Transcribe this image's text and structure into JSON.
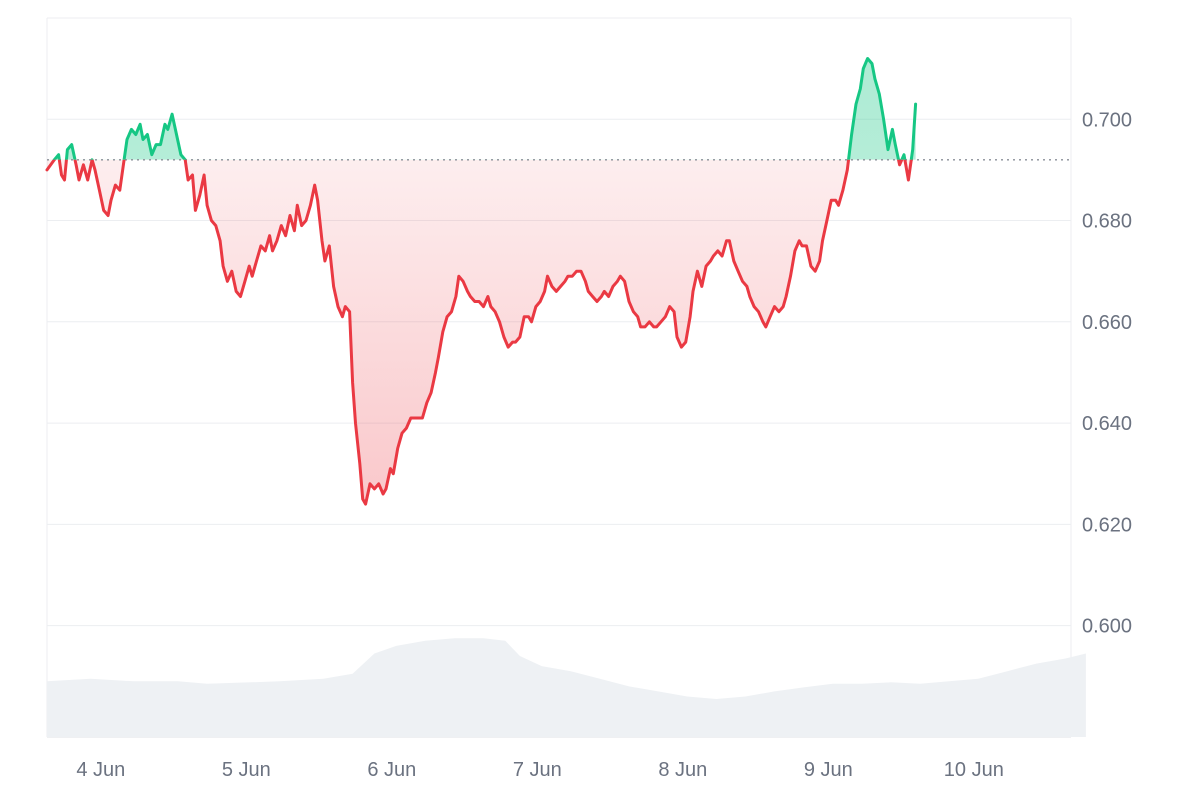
{
  "chart_data": {
    "type": "line",
    "title": "",
    "xlabel": "",
    "ylabel": "",
    "baseline": 0.692,
    "ylim": [
      0.578,
      0.72
    ],
    "y_ticks": [
      {
        "value": 0.6,
        "label": "0.600"
      },
      {
        "value": 0.62,
        "label": "0.620"
      },
      {
        "value": 0.64,
        "label": "0.640"
      },
      {
        "value": 0.66,
        "label": "0.660"
      },
      {
        "value": 0.68,
        "label": "0.680"
      },
      {
        "value": 0.7,
        "label": "0.700"
      }
    ],
    "x_range": [
      0,
      7.14
    ],
    "x_ticks": [
      {
        "value": 0.37,
        "label": "4 Jun"
      },
      {
        "value": 1.37,
        "label": "5 Jun"
      },
      {
        "value": 2.37,
        "label": "6 Jun"
      },
      {
        "value": 3.37,
        "label": "7 Jun"
      },
      {
        "value": 4.37,
        "label": "8 Jun"
      },
      {
        "value": 5.37,
        "label": "9 Jun"
      },
      {
        "value": 6.37,
        "label": "10 Jun"
      }
    ],
    "series": [
      {
        "values": [
          [
            0.0,
            0.69
          ],
          [
            0.05,
            0.692
          ],
          [
            0.08,
            0.693
          ],
          [
            0.1,
            0.689
          ],
          [
            0.12,
            0.688
          ],
          [
            0.14,
            0.694
          ],
          [
            0.17,
            0.695
          ],
          [
            0.2,
            0.691
          ],
          [
            0.22,
            0.688
          ],
          [
            0.25,
            0.691
          ],
          [
            0.28,
            0.688
          ],
          [
            0.31,
            0.692
          ],
          [
            0.33,
            0.69
          ],
          [
            0.36,
            0.686
          ],
          [
            0.39,
            0.682
          ],
          [
            0.42,
            0.681
          ],
          [
            0.44,
            0.684
          ],
          [
            0.47,
            0.687
          ],
          [
            0.5,
            0.686
          ],
          [
            0.53,
            0.692
          ],
          [
            0.55,
            0.696
          ],
          [
            0.58,
            0.698
          ],
          [
            0.61,
            0.697
          ],
          [
            0.64,
            0.699
          ],
          [
            0.66,
            0.696
          ],
          [
            0.69,
            0.697
          ],
          [
            0.72,
            0.693
          ],
          [
            0.75,
            0.695
          ],
          [
            0.78,
            0.695
          ],
          [
            0.81,
            0.699
          ],
          [
            0.83,
            0.698
          ],
          [
            0.86,
            0.701
          ],
          [
            0.89,
            0.697
          ],
          [
            0.92,
            0.693
          ],
          [
            0.95,
            0.692
          ],
          [
            0.97,
            0.688
          ],
          [
            1.0,
            0.689
          ],
          [
            1.02,
            0.682
          ],
          [
            1.05,
            0.685
          ],
          [
            1.08,
            0.689
          ],
          [
            1.1,
            0.683
          ],
          [
            1.13,
            0.68
          ],
          [
            1.16,
            0.679
          ],
          [
            1.19,
            0.676
          ],
          [
            1.21,
            0.671
          ],
          [
            1.24,
            0.668
          ],
          [
            1.27,
            0.67
          ],
          [
            1.3,
            0.666
          ],
          [
            1.33,
            0.665
          ],
          [
            1.36,
            0.668
          ],
          [
            1.39,
            0.671
          ],
          [
            1.41,
            0.669
          ],
          [
            1.44,
            0.672
          ],
          [
            1.47,
            0.675
          ],
          [
            1.5,
            0.674
          ],
          [
            1.53,
            0.677
          ],
          [
            1.55,
            0.674
          ],
          [
            1.58,
            0.676
          ],
          [
            1.61,
            0.679
          ],
          [
            1.64,
            0.677
          ],
          [
            1.67,
            0.681
          ],
          [
            1.7,
            0.678
          ],
          [
            1.72,
            0.683
          ],
          [
            1.75,
            0.679
          ],
          [
            1.78,
            0.68
          ],
          [
            1.81,
            0.683
          ],
          [
            1.84,
            0.687
          ],
          [
            1.86,
            0.684
          ],
          [
            1.89,
            0.676
          ],
          [
            1.91,
            0.672
          ],
          [
            1.94,
            0.675
          ],
          [
            1.97,
            0.667
          ],
          [
            2.0,
            0.663
          ],
          [
            2.03,
            0.661
          ],
          [
            2.05,
            0.663
          ],
          [
            2.08,
            0.662
          ],
          [
            2.1,
            0.648
          ],
          [
            2.12,
            0.64
          ],
          [
            2.15,
            0.632
          ],
          [
            2.17,
            0.625
          ],
          [
            2.19,
            0.624
          ],
          [
            2.22,
            0.628
          ],
          [
            2.25,
            0.627
          ],
          [
            2.28,
            0.628
          ],
          [
            2.31,
            0.626
          ],
          [
            2.33,
            0.627
          ],
          [
            2.36,
            0.631
          ],
          [
            2.38,
            0.63
          ],
          [
            2.41,
            0.635
          ],
          [
            2.44,
            0.638
          ],
          [
            2.47,
            0.639
          ],
          [
            2.5,
            0.641
          ],
          [
            2.53,
            0.641
          ],
          [
            2.56,
            0.641
          ],
          [
            2.58,
            0.641
          ],
          [
            2.61,
            0.644
          ],
          [
            2.64,
            0.646
          ],
          [
            2.67,
            0.65
          ],
          [
            2.69,
            0.653
          ],
          [
            2.72,
            0.658
          ],
          [
            2.75,
            0.661
          ],
          [
            2.78,
            0.662
          ],
          [
            2.81,
            0.665
          ],
          [
            2.83,
            0.669
          ],
          [
            2.86,
            0.668
          ],
          [
            2.89,
            0.666
          ],
          [
            2.91,
            0.665
          ],
          [
            2.94,
            0.664
          ],
          [
            2.97,
            0.664
          ],
          [
            3.0,
            0.663
          ],
          [
            3.03,
            0.665
          ],
          [
            3.05,
            0.663
          ],
          [
            3.08,
            0.662
          ],
          [
            3.11,
            0.66
          ],
          [
            3.14,
            0.657
          ],
          [
            3.17,
            0.655
          ],
          [
            3.2,
            0.656
          ],
          [
            3.22,
            0.656
          ],
          [
            3.25,
            0.657
          ],
          [
            3.28,
            0.661
          ],
          [
            3.31,
            0.661
          ],
          [
            3.33,
            0.66
          ],
          [
            3.36,
            0.663
          ],
          [
            3.39,
            0.664
          ],
          [
            3.42,
            0.666
          ],
          [
            3.44,
            0.669
          ],
          [
            3.47,
            0.667
          ],
          [
            3.5,
            0.666
          ],
          [
            3.53,
            0.667
          ],
          [
            3.56,
            0.668
          ],
          [
            3.58,
            0.669
          ],
          [
            3.61,
            0.669
          ],
          [
            3.64,
            0.67
          ],
          [
            3.67,
            0.67
          ],
          [
            3.7,
            0.668
          ],
          [
            3.72,
            0.666
          ],
          [
            3.75,
            0.665
          ],
          [
            3.78,
            0.664
          ],
          [
            3.81,
            0.665
          ],
          [
            3.83,
            0.666
          ],
          [
            3.86,
            0.665
          ],
          [
            3.89,
            0.667
          ],
          [
            3.92,
            0.668
          ],
          [
            3.94,
            0.669
          ],
          [
            3.97,
            0.668
          ],
          [
            4.0,
            0.664
          ],
          [
            4.03,
            0.662
          ],
          [
            4.06,
            0.661
          ],
          [
            4.08,
            0.659
          ],
          [
            4.11,
            0.659
          ],
          [
            4.14,
            0.66
          ],
          [
            4.17,
            0.659
          ],
          [
            4.19,
            0.659
          ],
          [
            4.22,
            0.66
          ],
          [
            4.25,
            0.661
          ],
          [
            4.28,
            0.663
          ],
          [
            4.31,
            0.662
          ],
          [
            4.33,
            0.657
          ],
          [
            4.36,
            0.655
          ],
          [
            4.39,
            0.656
          ],
          [
            4.42,
            0.661
          ],
          [
            4.44,
            0.666
          ],
          [
            4.47,
            0.67
          ],
          [
            4.5,
            0.667
          ],
          [
            4.53,
            0.671
          ],
          [
            4.56,
            0.672
          ],
          [
            4.58,
            0.673
          ],
          [
            4.61,
            0.674
          ],
          [
            4.64,
            0.673
          ],
          [
            4.67,
            0.676
          ],
          [
            4.69,
            0.676
          ],
          [
            4.72,
            0.672
          ],
          [
            4.75,
            0.67
          ],
          [
            4.78,
            0.668
          ],
          [
            4.81,
            0.667
          ],
          [
            4.83,
            0.665
          ],
          [
            4.86,
            0.663
          ],
          [
            4.89,
            0.662
          ],
          [
            4.92,
            0.66
          ],
          [
            4.94,
            0.659
          ],
          [
            4.97,
            0.661
          ],
          [
            5.0,
            0.663
          ],
          [
            5.03,
            0.662
          ],
          [
            5.06,
            0.663
          ],
          [
            5.08,
            0.665
          ],
          [
            5.11,
            0.669
          ],
          [
            5.14,
            0.674
          ],
          [
            5.17,
            0.676
          ],
          [
            5.19,
            0.675
          ],
          [
            5.22,
            0.675
          ],
          [
            5.25,
            0.671
          ],
          [
            5.28,
            0.67
          ],
          [
            5.31,
            0.672
          ],
          [
            5.33,
            0.676
          ],
          [
            5.36,
            0.68
          ],
          [
            5.39,
            0.684
          ],
          [
            5.42,
            0.684
          ],
          [
            5.44,
            0.683
          ],
          [
            5.47,
            0.686
          ],
          [
            5.5,
            0.69
          ],
          [
            5.53,
            0.697
          ],
          [
            5.56,
            0.703
          ],
          [
            5.59,
            0.706
          ],
          [
            5.61,
            0.71
          ],
          [
            5.64,
            0.712
          ],
          [
            5.67,
            0.711
          ],
          [
            5.69,
            0.708
          ],
          [
            5.72,
            0.705
          ],
          [
            5.75,
            0.7
          ],
          [
            5.78,
            0.694
          ],
          [
            5.81,
            0.698
          ],
          [
            5.83,
            0.695
          ],
          [
            5.86,
            0.691
          ],
          [
            5.89,
            0.693
          ],
          [
            5.92,
            0.688
          ],
          [
            5.95,
            0.694
          ],
          [
            5.97,
            0.703
          ]
        ]
      }
    ],
    "volume": [
      [
        0.0,
        0.589
      ],
      [
        0.3,
        0.5895
      ],
      [
        0.6,
        0.589
      ],
      [
        0.9,
        0.589
      ],
      [
        1.1,
        0.5885
      ],
      [
        1.3,
        0.5887
      ],
      [
        1.6,
        0.589
      ],
      [
        1.9,
        0.5895
      ],
      [
        2.1,
        0.5905
      ],
      [
        2.25,
        0.5945
      ],
      [
        2.4,
        0.596
      ],
      [
        2.6,
        0.597
      ],
      [
        2.8,
        0.5975
      ],
      [
        3.0,
        0.5975
      ],
      [
        3.15,
        0.597
      ],
      [
        3.25,
        0.594
      ],
      [
        3.4,
        0.592
      ],
      [
        3.6,
        0.591
      ],
      [
        3.8,
        0.5895
      ],
      [
        4.0,
        0.588
      ],
      [
        4.2,
        0.587
      ],
      [
        4.4,
        0.586
      ],
      [
        4.6,
        0.5855
      ],
      [
        4.8,
        0.586
      ],
      [
        5.0,
        0.587
      ],
      [
        5.2,
        0.5878
      ],
      [
        5.4,
        0.5885
      ],
      [
        5.6,
        0.5885
      ],
      [
        5.8,
        0.5888
      ],
      [
        6.0,
        0.5885
      ],
      [
        6.2,
        0.589
      ],
      [
        6.4,
        0.5895
      ],
      [
        6.6,
        0.591
      ],
      [
        6.8,
        0.5925
      ],
      [
        7.0,
        0.5935
      ],
      [
        7.14,
        0.5945
      ]
    ],
    "colors": {
      "up": "#16c784",
      "down": "#ea3943",
      "up_fill": "#16c784",
      "down_fill": "#ea3943",
      "volume": "#eef1f4",
      "grid": "#eceef1",
      "baseline": "#8a8f98",
      "text": "#6b7280"
    },
    "grid": true
  }
}
